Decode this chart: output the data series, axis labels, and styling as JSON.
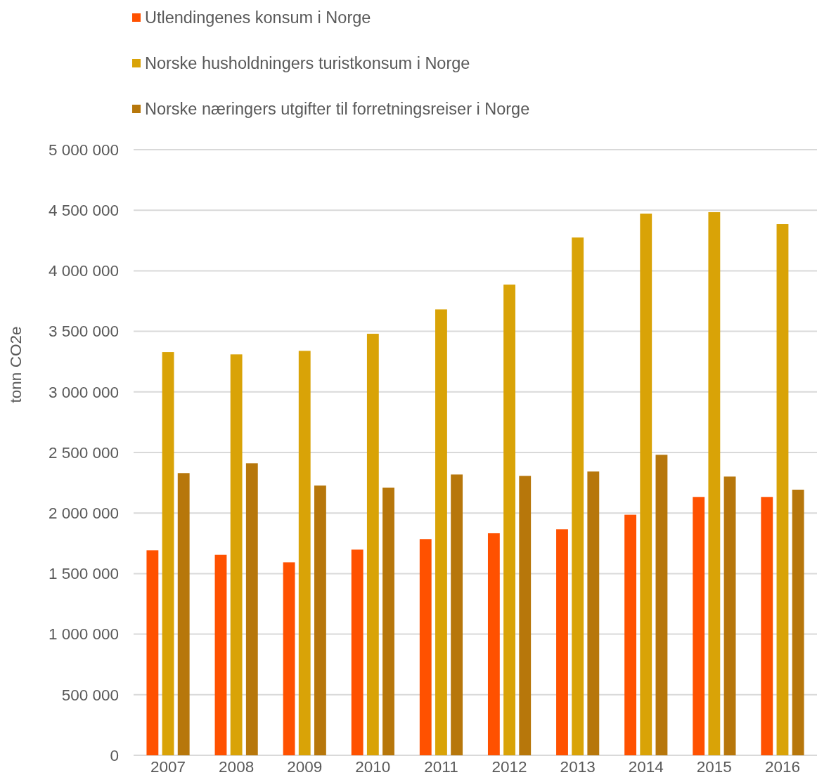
{
  "chart_data": {
    "type": "bar",
    "ylabel": "tonn CO2e",
    "categories": [
      "2007",
      "2008",
      "2009",
      "2010",
      "2011",
      "2012",
      "2013",
      "2014",
      "2015",
      "2016"
    ],
    "series": [
      {
        "name": "Utlendingenes konsum i Norge",
        "color": "#ff5100",
        "values": [
          1692000,
          1655000,
          1593000,
          1698000,
          1785000,
          1833000,
          1866000,
          1986000,
          2133000,
          2133000
        ]
      },
      {
        "name": "Norske husholdningers turistkonsum i Norge",
        "color": "#d9a307",
        "values": [
          3329000,
          3310000,
          3339000,
          3480000,
          3681000,
          3886000,
          4275000,
          4472000,
          4484000,
          4385000
        ]
      },
      {
        "name": "Norske næringers utgifter til forretningsreiser i Norge",
        "color": "#b7770b",
        "values": [
          2330000,
          2411000,
          2227000,
          2210000,
          2318000,
          2307000,
          2343000,
          2481000,
          2301000,
          2193000
        ]
      }
    ],
    "ylim": [
      0,
      5000000
    ],
    "yticks": [
      0,
      {
        "value": 500000,
        "label": "500 000"
      },
      {
        "value": 1000000,
        "label": "1 000 000"
      },
      {
        "value": 1500000,
        "label": "1 500 000"
      },
      {
        "value": 2000000,
        "label": "2 000 000"
      },
      {
        "value": 2500000,
        "label": "2 500 000"
      },
      {
        "value": 3000000,
        "label": "3 000 000"
      },
      {
        "value": 3500000,
        "label": "3 500 000"
      },
      {
        "value": 4000000,
        "label": "4 000 000"
      },
      {
        "value": 4500000,
        "label": "4 500 000"
      },
      {
        "value": 5000000,
        "label": "5 000 000"
      }
    ],
    "grid": "y",
    "legend": "top"
  }
}
